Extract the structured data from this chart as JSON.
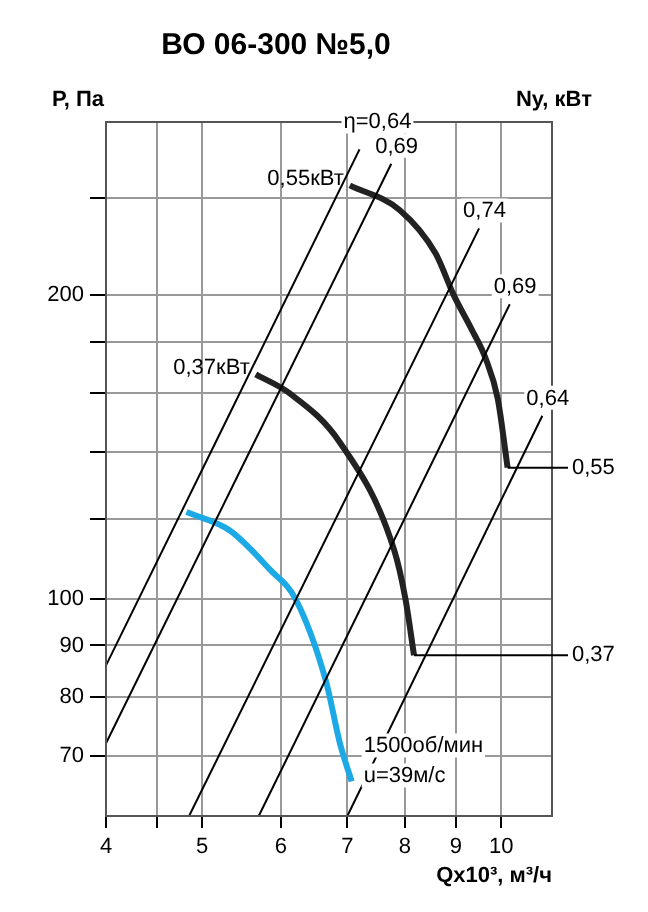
{
  "chart_data": {
    "type": "line",
    "title": "ВО 06-300 №5,0",
    "ylabel": "P, Па",
    "y2label": "Ny, кВт",
    "xlabel": "Qx10³, м³/ч",
    "log": "xy",
    "grid": true,
    "marker": "none",
    "xlim": [
      4,
      11.25
    ],
    "xticks": [
      4,
      {
        "value": 4.5,
        "label": null
      },
      5,
      6,
      7,
      8,
      9,
      10
    ],
    "ylim": [
      61,
      297
    ],
    "yticks": [
      70,
      80,
      90,
      100,
      {
        "value": 120,
        "label": null
      },
      {
        "value": 140,
        "label": null
      },
      {
        "value": 160,
        "label": null
      },
      {
        "value": 180,
        "label": null
      },
      200,
      {
        "value": 250,
        "label": null
      }
    ],
    "series": [
      {
        "name": "η=0,64",
        "color": "#000000",
        "x": [
          4,
          7.2
        ],
        "values": [
          86,
          279
        ]
      },
      {
        "name": "0,69",
        "color": "#000000",
        "x": [
          4,
          7.75
        ],
        "values": [
          72,
          270
        ]
      },
      {
        "name": "0,74",
        "color": "#000000",
        "x": [
          4.85,
          9.5
        ],
        "values": [
          61,
          233
        ]
      },
      {
        "name": "0,69",
        "color": "#000000",
        "x": [
          5.7,
          10.2
        ],
        "values": [
          61,
          196
        ]
      },
      {
        "name": "0,64",
        "color": "#000000",
        "x": [
          7,
          11
        ],
        "values": [
          61,
          152
        ]
      },
      {
        "name": "0,55кВт",
        "color": "#222222",
        "x": [
          7.04,
          7.9,
          8.59,
          8.96,
          9.34,
          9.65,
          9.92,
          10.15
        ],
        "values": [
          257,
          243,
          220,
          200,
          185,
          173,
          158,
          135
        ]
      },
      {
        "name": "0,37кВт",
        "color": "#222222",
        "x": [
          5.66,
          6.12,
          6.88,
          7.8,
          8.01,
          8.17
        ],
        "values": [
          167,
          160,
          143,
          112,
          100,
          88
        ]
      },
      {
        "color": "#1ca9e6",
        "x": [
          4.82,
          5.33,
          5.85,
          6.21,
          6.66,
          6.88,
          7.07
        ],
        "values": [
          122,
          117,
          107,
          100,
          83,
          72,
          66
        ]
      }
    ],
    "annotations": [
      {
        "text": "0,55",
        "x": 10.15,
        "y": 135
      },
      {
        "text": "0,37",
        "x": 8.17,
        "y": 88
      },
      "1500об/мин",
      "u=39м/с"
    ]
  }
}
